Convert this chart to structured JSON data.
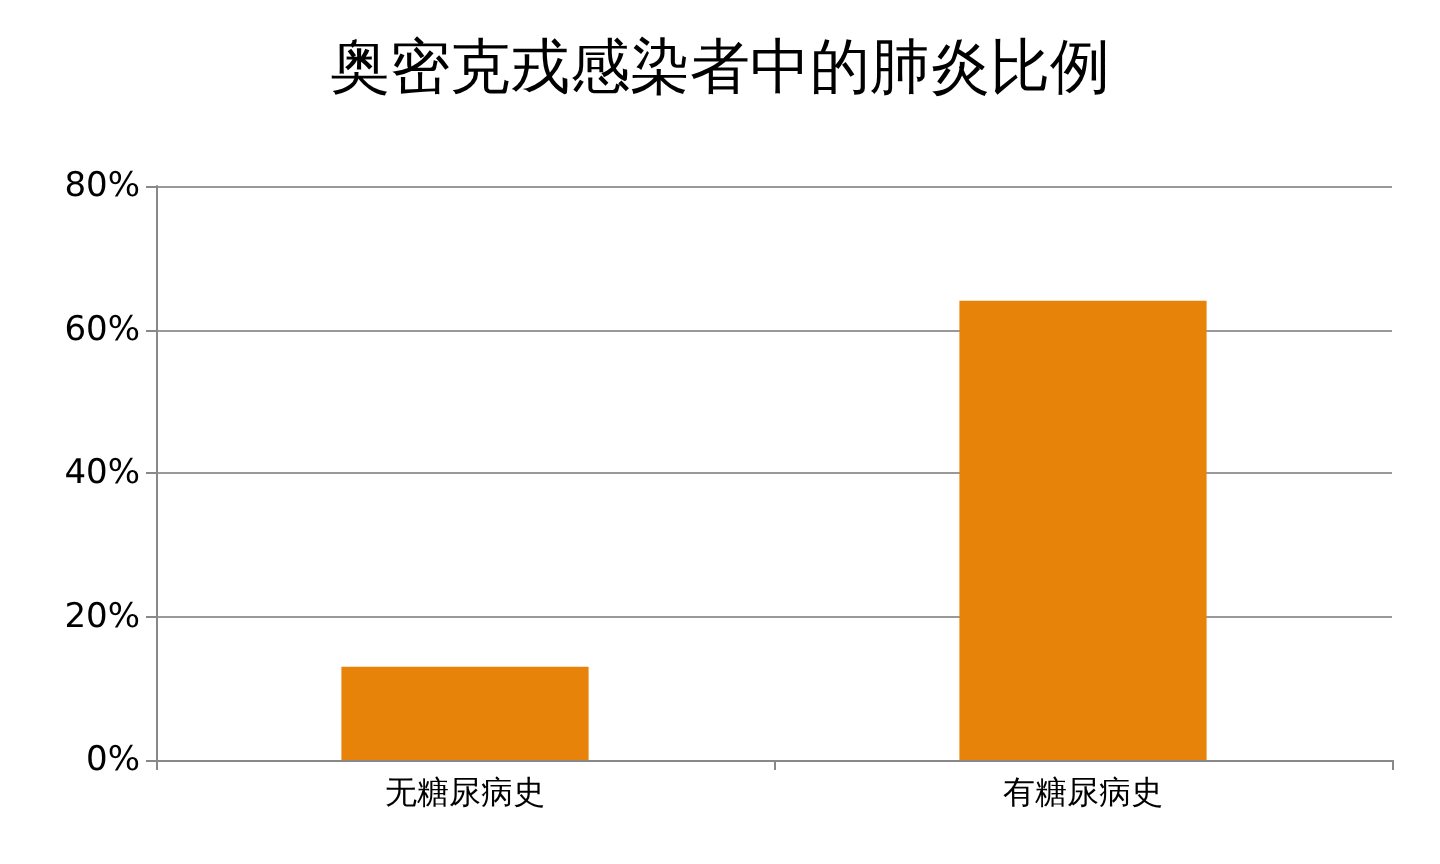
{
  "chart_data": {
    "type": "bar",
    "title": "奥密克戎感染者中的肺炎比例",
    "categories": [
      "无糖尿病史",
      "有糖尿病史"
    ],
    "values": [
      13,
      64
    ],
    "color": "#e8830a",
    "ylim": [
      0,
      80
    ],
    "yticks": [
      {
        "value": 0,
        "label": "0%"
      },
      {
        "value": 20,
        "label": "20%"
      },
      {
        "value": 40,
        "label": "40%"
      },
      {
        "value": 60,
        "label": "60%"
      },
      {
        "value": 80,
        "label": "80%"
      }
    ],
    "grid": "y"
  }
}
